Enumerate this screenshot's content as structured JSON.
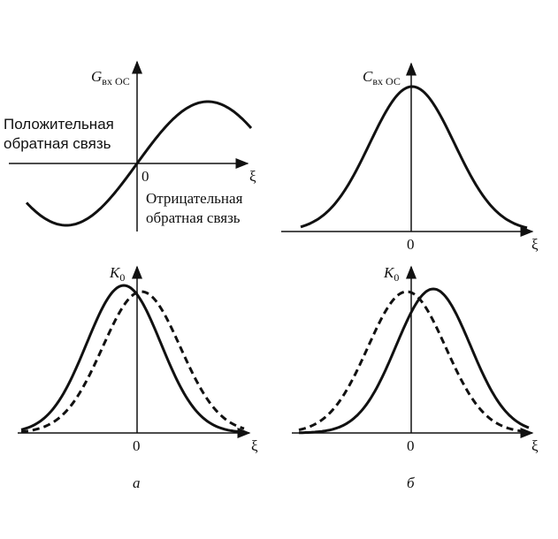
{
  "panels": [
    {
      "y_label": {
        "main": "G",
        "sub": "вх ОС"
      },
      "origin": "0",
      "x_label": "ξ",
      "notes": [
        [
          "Положительная",
          "обратная связь"
        ],
        [
          "Отрицательная",
          "обратная связь"
        ]
      ]
    },
    {
      "y_label": {
        "main": "C",
        "sub": "вх ОС"
      },
      "origin": "0",
      "x_label": "ξ"
    },
    {
      "y_label": {
        "main": "K",
        "sub": "0"
      },
      "origin": "0",
      "x_label": "ξ"
    },
    {
      "y_label": {
        "main": "K",
        "sub": "0"
      },
      "origin": "0",
      "x_label": "ξ"
    }
  ],
  "captions": [
    "а",
    "б"
  ]
}
